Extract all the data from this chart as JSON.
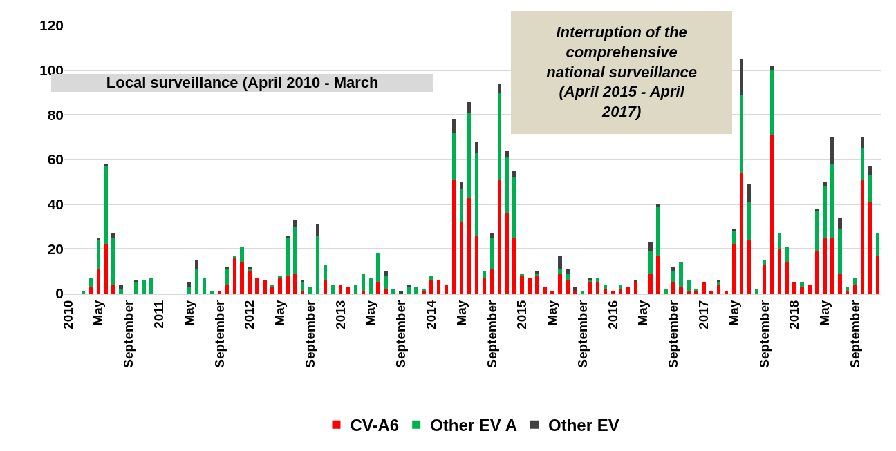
{
  "chart_data": {
    "type": "bar",
    "stacked": true,
    "grid": "y",
    "legend": "bottom",
    "categories": [
      "2010",
      null,
      null,
      null,
      "May",
      null,
      null,
      null,
      "September",
      null,
      null,
      null,
      "2011",
      null,
      null,
      null,
      "May",
      null,
      null,
      null,
      "September",
      null,
      null,
      null,
      "2012",
      null,
      null,
      null,
      "May",
      null,
      null,
      null,
      "September",
      null,
      null,
      null,
      "2013",
      null,
      null,
      null,
      "May",
      null,
      null,
      null,
      "September",
      null,
      null,
      null,
      "2014",
      null,
      null,
      null,
      "May",
      null,
      null,
      null,
      "September",
      null,
      null,
      null,
      "2015",
      null,
      null,
      null,
      "May",
      null,
      null,
      null,
      "September",
      null,
      null,
      null,
      "2016",
      null,
      null,
      null,
      "May",
      null,
      null,
      null,
      "September",
      null,
      null,
      null,
      "2017",
      null,
      null,
      null,
      "May",
      null,
      null,
      null,
      "September",
      null,
      null,
      null,
      "2018",
      null,
      null,
      null,
      "May",
      null,
      null,
      null,
      "September",
      null,
      null,
      null
    ],
    "ylim": [
      0,
      120
    ],
    "yticks": [
      0,
      20,
      40,
      60,
      80,
      100,
      120
    ],
    "series": [
      {
        "name": "CV-A6",
        "color": "#ff0000",
        "values": [
          0,
          0,
          0,
          3,
          11,
          22,
          4,
          0,
          0,
          0,
          0,
          0,
          0,
          0,
          0,
          0,
          0,
          0,
          0,
          0,
          1,
          4,
          16,
          14,
          10,
          7,
          6,
          3,
          7,
          8,
          9,
          1,
          0,
          0,
          6,
          0,
          4,
          3,
          0,
          1,
          0,
          5,
          2,
          0,
          0,
          0,
          0,
          1,
          6,
          6,
          4,
          51,
          32,
          43,
          26,
          7,
          11,
          51,
          36,
          25,
          8,
          7,
          8,
          3,
          1,
          9,
          6,
          1,
          0,
          5,
          5,
          2,
          1,
          2,
          3,
          5,
          0,
          9,
          17,
          0,
          5,
          3,
          1,
          1,
          5,
          1,
          4,
          1,
          22,
          54,
          24,
          0,
          13,
          71,
          20,
          14,
          5,
          3,
          4,
          19,
          25,
          25,
          9,
          1,
          4,
          51,
          41,
          17
        ]
      },
      {
        "name": "Other EV A",
        "color": "#00b050",
        "values": [
          0,
          0,
          1,
          4,
          13,
          35,
          21,
          2,
          0,
          5,
          6,
          7,
          0,
          0,
          0,
          0,
          3,
          11,
          7,
          1,
          0,
          7,
          1,
          7,
          1,
          0,
          0,
          1,
          1,
          17,
          21,
          4,
          3,
          26,
          7,
          4,
          0,
          0,
          4,
          8,
          7,
          13,
          6,
          2,
          0,
          3,
          3,
          1,
          2,
          0,
          0,
          21,
          15,
          38,
          37,
          3,
          14,
          39,
          25,
          27,
          1,
          0,
          1,
          0,
          0,
          2,
          3,
          0,
          1,
          1,
          2,
          2,
          0,
          2,
          0,
          0,
          0,
          10,
          22,
          2,
          5,
          11,
          5,
          1,
          0,
          0,
          1,
          0,
          6,
          35,
          17,
          2,
          2,
          29,
          7,
          7,
          0,
          2,
          0,
          18,
          23,
          33,
          20,
          2,
          3,
          14,
          12,
          10
        ]
      },
      {
        "name": "Other EV",
        "color": "#404040",
        "values": [
          0,
          0,
          0,
          0,
          1,
          1,
          2,
          2,
          0,
          1,
          0,
          0,
          0,
          0,
          0,
          0,
          2,
          4,
          0,
          0,
          0,
          1,
          0,
          0,
          1,
          0,
          0,
          0,
          0,
          1,
          3,
          1,
          0,
          5,
          0,
          0,
          0,
          0,
          0,
          0,
          0,
          0,
          2,
          0,
          1,
          1,
          0,
          0,
          0,
          0,
          0,
          6,
          3,
          5,
          5,
          0,
          2,
          4,
          3,
          3,
          0,
          0,
          1,
          0,
          0,
          6,
          2,
          2,
          0,
          1,
          0,
          0,
          0,
          0,
          0,
          1,
          0,
          4,
          1,
          0,
          2,
          0,
          0,
          0,
          0,
          0,
          1,
          0,
          1,
          16,
          8,
          0,
          0,
          2,
          0,
          0,
          0,
          0,
          0,
          1,
          2,
          12,
          5,
          0,
          0,
          5,
          4,
          0
        ]
      }
    ],
    "annotations": [
      "Local surveillance (April 2010 - March",
      "Interruption of the comprehensive national surveillance (April 2015 - April 2017)"
    ]
  }
}
